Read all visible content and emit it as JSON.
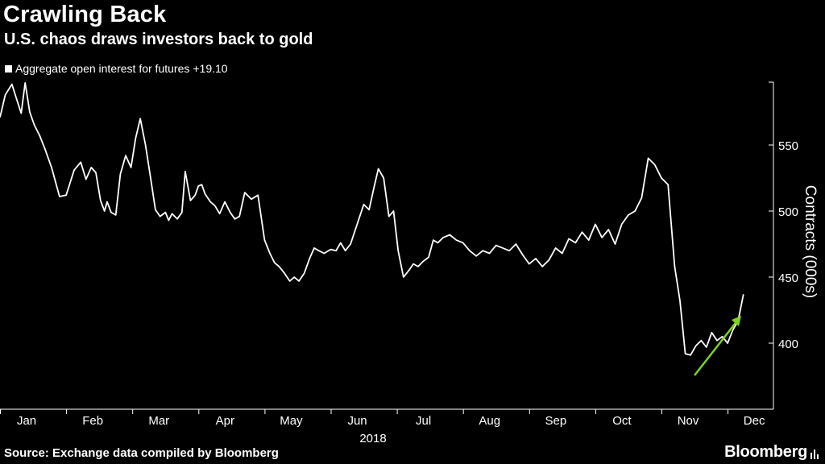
{
  "header": {
    "title": "Crawling Back",
    "subtitle": "U.S. chaos draws investors back to gold"
  },
  "footer": {
    "source": "Source: Exchange data compiled by Bloomberg",
    "brand": "Bloomberg"
  },
  "colors": {
    "background": "#000000",
    "series": "#ffffff",
    "annotation_arrow": "#7ed321"
  },
  "chart_data": {
    "type": "line",
    "title": "Crawling Back",
    "subtitle": "U.S. chaos draws investors back to gold",
    "ylabel": "Contracts (000s)",
    "year_label": "2018",
    "months": [
      "Jan",
      "Feb",
      "Mar",
      "Apr",
      "May",
      "Jun",
      "Jul",
      "Aug",
      "Sep",
      "Oct",
      "Nov",
      "Dec"
    ],
    "yticks": [
      400,
      450,
      500,
      550
    ],
    "ylim": [
      350,
      600
    ],
    "grid": false,
    "legend_position": "top-left",
    "series": [
      {
        "name": "Aggregate open interest for futures",
        "legend_value": "+19.10",
        "x_months": [
          0,
          0.08,
          0.18,
          0.25,
          0.32,
          0.38,
          0.45,
          0.52,
          0.6,
          0.68,
          0.78,
          0.9,
          1.0,
          1.12,
          1.22,
          1.3,
          1.38,
          1.45,
          1.52,
          1.58,
          1.62,
          1.68,
          1.75,
          1.82,
          1.9,
          1.98,
          2.05,
          2.12,
          2.2,
          2.28,
          2.35,
          2.42,
          2.5,
          2.55,
          2.6,
          2.68,
          2.75,
          2.8,
          2.88,
          2.95,
          3.0,
          3.05,
          3.1,
          3.18,
          3.25,
          3.32,
          3.4,
          3.48,
          3.55,
          3.62,
          3.7,
          3.8,
          3.9,
          4.0,
          4.08,
          4.15,
          4.22,
          4.3,
          4.38,
          4.45,
          4.52,
          4.6,
          4.68,
          4.75,
          4.82,
          4.9,
          5.0,
          5.08,
          5.15,
          5.22,
          5.3,
          5.4,
          5.5,
          5.58,
          5.65,
          5.72,
          5.8,
          5.88,
          5.95,
          6.02,
          6.1,
          6.18,
          6.25,
          6.32,
          6.4,
          6.48,
          6.55,
          6.62,
          6.7,
          6.8,
          6.9,
          7.0,
          7.1,
          7.2,
          7.3,
          7.4,
          7.5,
          7.6,
          7.7,
          7.8,
          7.9,
          8.0,
          8.1,
          8.2,
          8.3,
          8.4,
          8.5,
          8.6,
          8.7,
          8.8,
          8.9,
          9.0,
          9.1,
          9.2,
          9.3,
          9.4,
          9.5,
          9.6,
          9.7,
          9.8,
          9.9,
          10.0,
          10.1,
          10.2,
          10.28,
          10.36,
          10.44,
          10.52,
          10.6,
          10.68,
          10.76,
          10.84,
          10.92,
          11.0,
          11.08,
          11.16,
          11.24
        ],
        "values": [
          571,
          588,
          596,
          585,
          574,
          597,
          575,
          565,
          557,
          547,
          533,
          511,
          512,
          531,
          537,
          524,
          533,
          529,
          508,
          500,
          507,
          499,
          497,
          528,
          542,
          533,
          555,
          570,
          550,
          524,
          501,
          496,
          499,
          493,
          498,
          494,
          499,
          530,
          508,
          512,
          519,
          520,
          513,
          507,
          504,
          498,
          507,
          499,
          494,
          496,
          514,
          509,
          512,
          478,
          468,
          461,
          458,
          453,
          447,
          450,
          447,
          453,
          464,
          472,
          470,
          468,
          471,
          470,
          476,
          470,
          475,
          490,
          505,
          501,
          517,
          532,
          525,
          496,
          500,
          470,
          450,
          455,
          460,
          458,
          462,
          465,
          478,
          476,
          480,
          482,
          478,
          476,
          470,
          466,
          470,
          468,
          474,
          472,
          470,
          475,
          467,
          460,
          464,
          458,
          463,
          472,
          468,
          479,
          476,
          484,
          478,
          490,
          480,
          486,
          475,
          490,
          497,
          500,
          510,
          540,
          535,
          525,
          520,
          458,
          432,
          392,
          391,
          398,
          402,
          397,
          408,
          402,
          405,
          400,
          410,
          417,
          437
        ]
      }
    ]
  }
}
